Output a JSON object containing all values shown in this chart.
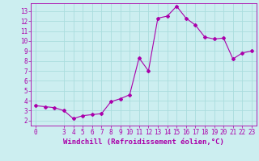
{
  "x": [
    0,
    1,
    2,
    3,
    4,
    5,
    6,
    7,
    8,
    9,
    10,
    11,
    12,
    13,
    14,
    15,
    16,
    17,
    18,
    19,
    20,
    21,
    22,
    23
  ],
  "y": [
    3.5,
    3.4,
    3.3,
    3.0,
    2.2,
    2.5,
    2.6,
    2.7,
    3.9,
    4.2,
    4.6,
    8.3,
    7.0,
    12.3,
    12.5,
    13.5,
    12.3,
    11.6,
    10.4,
    10.2,
    10.3,
    8.2,
    8.8,
    9.0
  ],
  "line_color": "#aa00aa",
  "marker": "D",
  "marker_size": 2.0,
  "background_color": "#cceef0",
  "grid_color": "#aadddd",
  "xlabel": "Windchill (Refroidissement éolien,°C)",
  "xlabel_color": "#aa00aa",
  "tick_color": "#aa00aa",
  "ylim": [
    1.5,
    13.8
  ],
  "xlim": [
    -0.5,
    23.5
  ],
  "yticks": [
    2,
    3,
    4,
    5,
    6,
    7,
    8,
    9,
    10,
    11,
    12,
    13
  ],
  "xticks": [
    0,
    3,
    4,
    5,
    6,
    7,
    8,
    9,
    10,
    11,
    12,
    13,
    14,
    15,
    16,
    17,
    18,
    19,
    20,
    21,
    22,
    23
  ],
  "xlabel_fontsize": 6.5,
  "tick_fontsize": 5.5
}
